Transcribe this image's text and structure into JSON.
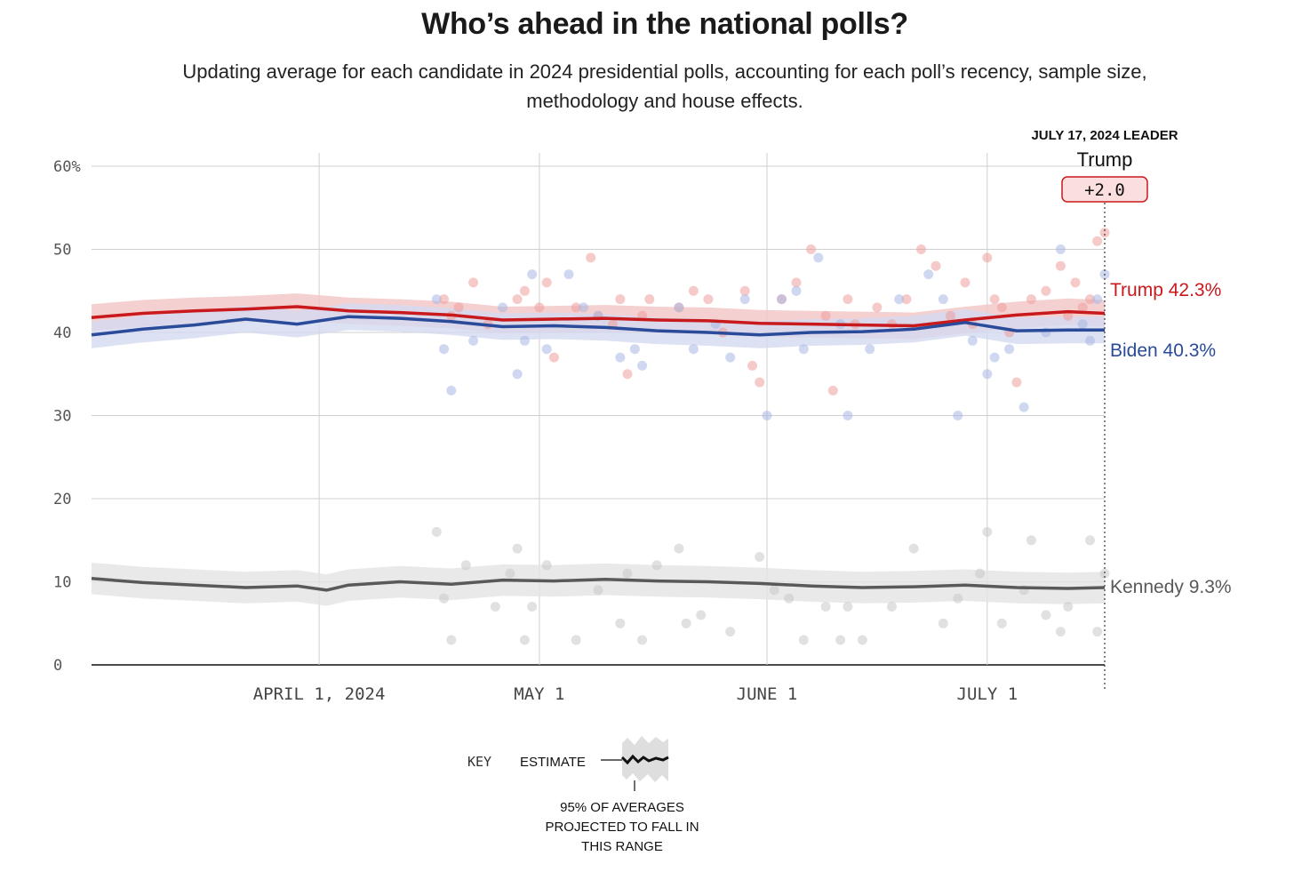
{
  "header": {
    "title": "Who’s ahead in the national polls?",
    "subtitle": "Updating average for each candidate in 2024 presidential polls, accounting for each poll’s recency, sample size, methodology and house effects."
  },
  "leader": {
    "date_label": "JULY 17, 2024 LEADER",
    "name": "Trump",
    "margin": "+2.0"
  },
  "key": {
    "title": "KEY",
    "estimate_label": "ESTIMATE",
    "band_lines": [
      "95% OF AVERAGES",
      "PROJECTED TO FALL IN",
      "THIS RANGE"
    ]
  },
  "chart_data": {
    "type": "line",
    "x_range": [
      "2024-03-01",
      "2024-07-17"
    ],
    "ylim": [
      0,
      60
    ],
    "y_ticks": [
      {
        "value": 60,
        "label": "60%"
      },
      {
        "value": 50,
        "label": "50"
      },
      {
        "value": 40,
        "label": "40"
      },
      {
        "value": 30,
        "label": "30"
      },
      {
        "value": 20,
        "label": "20"
      },
      {
        "value": 10,
        "label": "10"
      },
      {
        "value": 0,
        "label": "0"
      }
    ],
    "x_ticks": [
      {
        "date": "2024-04-01",
        "label": "APRIL 1, 2024"
      },
      {
        "date": "2024-05-01",
        "label": "MAY 1"
      },
      {
        "date": "2024-06-01",
        "label": "JUNE 1"
      },
      {
        "date": "2024-07-01",
        "label": "JULY 1"
      }
    ],
    "grid": true,
    "series": [
      {
        "name": "Trump",
        "end_label": "Trump 42.3%",
        "color": "#c8191d",
        "band_color": "#f2c4c4",
        "dot_color": "#ef9f9c",
        "band_half_width": 1.6,
        "average": [
          [
            "2024-03-01",
            41.8
          ],
          [
            "2024-03-08",
            42.3
          ],
          [
            "2024-03-15",
            42.6
          ],
          [
            "2024-03-22",
            42.8
          ],
          [
            "2024-03-29",
            43.1
          ],
          [
            "2024-04-05",
            42.6
          ],
          [
            "2024-04-12",
            42.4
          ],
          [
            "2024-04-19",
            42.1
          ],
          [
            "2024-04-26",
            41.5
          ],
          [
            "2024-05-03",
            41.6
          ],
          [
            "2024-05-10",
            41.7
          ],
          [
            "2024-05-17",
            41.5
          ],
          [
            "2024-05-24",
            41.4
          ],
          [
            "2024-05-31",
            41.1
          ],
          [
            "2024-06-07",
            41.0
          ],
          [
            "2024-06-14",
            40.9
          ],
          [
            "2024-06-21",
            40.8
          ],
          [
            "2024-06-28",
            41.5
          ],
          [
            "2024-07-05",
            42.1
          ],
          [
            "2024-07-12",
            42.5
          ],
          [
            "2024-07-17",
            42.3
          ]
        ],
        "polls": [
          [
            "2024-04-18",
            44
          ],
          [
            "2024-04-19",
            42
          ],
          [
            "2024-04-20",
            43
          ],
          [
            "2024-04-22",
            46
          ],
          [
            "2024-04-24",
            41
          ],
          [
            "2024-04-28",
            44
          ],
          [
            "2024-04-29",
            45
          ],
          [
            "2024-05-01",
            43
          ],
          [
            "2024-05-02",
            46
          ],
          [
            "2024-05-03",
            37
          ],
          [
            "2024-05-06",
            43
          ],
          [
            "2024-05-08",
            49
          ],
          [
            "2024-05-09",
            42
          ],
          [
            "2024-05-11",
            41
          ],
          [
            "2024-05-12",
            44
          ],
          [
            "2024-05-13",
            35
          ],
          [
            "2024-05-15",
            42
          ],
          [
            "2024-05-16",
            44
          ],
          [
            "2024-05-20",
            43
          ],
          [
            "2024-05-22",
            45
          ],
          [
            "2024-05-24",
            44
          ],
          [
            "2024-05-26",
            40
          ],
          [
            "2024-05-29",
            45
          ],
          [
            "2024-05-30",
            36
          ],
          [
            "2024-05-31",
            34
          ],
          [
            "2024-06-03",
            44
          ],
          [
            "2024-06-05",
            46
          ],
          [
            "2024-06-07",
            50
          ],
          [
            "2024-06-09",
            42
          ],
          [
            "2024-06-10",
            33
          ],
          [
            "2024-06-12",
            44
          ],
          [
            "2024-06-13",
            41
          ],
          [
            "2024-06-16",
            43
          ],
          [
            "2024-06-18",
            41
          ],
          [
            "2024-06-20",
            44
          ],
          [
            "2024-06-22",
            50
          ],
          [
            "2024-06-24",
            48
          ],
          [
            "2024-06-26",
            42
          ],
          [
            "2024-06-28",
            46
          ],
          [
            "2024-06-29",
            41
          ],
          [
            "2024-07-01",
            49
          ],
          [
            "2024-07-02",
            44
          ],
          [
            "2024-07-03",
            43
          ],
          [
            "2024-07-04",
            40
          ],
          [
            "2024-07-05",
            34
          ],
          [
            "2024-07-07",
            44
          ],
          [
            "2024-07-09",
            45
          ],
          [
            "2024-07-11",
            48
          ],
          [
            "2024-07-12",
            42
          ],
          [
            "2024-07-13",
            46
          ],
          [
            "2024-07-14",
            43
          ],
          [
            "2024-07-15",
            44
          ],
          [
            "2024-07-16",
            51
          ],
          [
            "2024-07-17",
            52
          ]
        ]
      },
      {
        "name": "Biden",
        "end_label": "Biden 40.3%",
        "color": "#2a4a9a",
        "band_color": "#d3daf0",
        "dot_color": "#a8b8e4",
        "band_half_width": 1.6,
        "average": [
          [
            "2024-03-01",
            39.7
          ],
          [
            "2024-03-08",
            40.4
          ],
          [
            "2024-03-15",
            40.9
          ],
          [
            "2024-03-22",
            41.6
          ],
          [
            "2024-03-29",
            41.0
          ],
          [
            "2024-04-05",
            41.9
          ],
          [
            "2024-04-12",
            41.7
          ],
          [
            "2024-04-19",
            41.3
          ],
          [
            "2024-04-26",
            40.7
          ],
          [
            "2024-05-03",
            40.8
          ],
          [
            "2024-05-10",
            40.6
          ],
          [
            "2024-05-17",
            40.2
          ],
          [
            "2024-05-24",
            40.0
          ],
          [
            "2024-05-31",
            39.7
          ],
          [
            "2024-06-07",
            40.0
          ],
          [
            "2024-06-14",
            40.1
          ],
          [
            "2024-06-21",
            40.4
          ],
          [
            "2024-06-28",
            41.2
          ],
          [
            "2024-07-05",
            40.2
          ],
          [
            "2024-07-12",
            40.3
          ],
          [
            "2024-07-17",
            40.3
          ]
        ],
        "polls": [
          [
            "2024-04-17",
            44
          ],
          [
            "2024-04-18",
            38
          ],
          [
            "2024-04-19",
            33
          ],
          [
            "2024-04-22",
            39
          ],
          [
            "2024-04-26",
            43
          ],
          [
            "2024-04-28",
            35
          ],
          [
            "2024-04-29",
            39
          ],
          [
            "2024-04-30",
            47
          ],
          [
            "2024-05-02",
            38
          ],
          [
            "2024-05-05",
            47
          ],
          [
            "2024-05-07",
            43
          ],
          [
            "2024-05-09",
            42
          ],
          [
            "2024-05-12",
            37
          ],
          [
            "2024-05-14",
            38
          ],
          [
            "2024-05-15",
            36
          ],
          [
            "2024-05-20",
            43
          ],
          [
            "2024-05-22",
            38
          ],
          [
            "2024-05-25",
            41
          ],
          [
            "2024-05-27",
            37
          ],
          [
            "2024-05-29",
            44
          ],
          [
            "2024-06-01",
            30
          ],
          [
            "2024-06-03",
            44
          ],
          [
            "2024-06-05",
            45
          ],
          [
            "2024-06-06",
            38
          ],
          [
            "2024-06-08",
            49
          ],
          [
            "2024-06-11",
            41
          ],
          [
            "2024-06-12",
            30
          ],
          [
            "2024-06-15",
            38
          ],
          [
            "2024-06-19",
            44
          ],
          [
            "2024-06-23",
            47
          ],
          [
            "2024-06-25",
            44
          ],
          [
            "2024-06-27",
            30
          ],
          [
            "2024-06-29",
            39
          ],
          [
            "2024-07-01",
            35
          ],
          [
            "2024-07-02",
            37
          ],
          [
            "2024-07-04",
            38
          ],
          [
            "2024-07-06",
            31
          ],
          [
            "2024-07-09",
            40
          ],
          [
            "2024-07-11",
            50
          ],
          [
            "2024-07-14",
            41
          ],
          [
            "2024-07-15",
            39
          ],
          [
            "2024-07-16",
            44
          ],
          [
            "2024-07-17",
            47
          ]
        ]
      },
      {
        "name": "Kennedy",
        "end_label": "Kennedy 9.3%",
        "color": "#595959",
        "band_color": "#e3e3e3",
        "dot_color": "#c9c9c9",
        "band_half_width": 1.9,
        "average": [
          [
            "2024-03-01",
            10.4
          ],
          [
            "2024-03-08",
            9.9
          ],
          [
            "2024-03-15",
            9.6
          ],
          [
            "2024-03-22",
            9.3
          ],
          [
            "2024-03-29",
            9.5
          ],
          [
            "2024-04-02",
            9.0
          ],
          [
            "2024-04-05",
            9.6
          ],
          [
            "2024-04-12",
            10.0
          ],
          [
            "2024-04-19",
            9.7
          ],
          [
            "2024-04-26",
            10.2
          ],
          [
            "2024-05-03",
            10.1
          ],
          [
            "2024-05-10",
            10.3
          ],
          [
            "2024-05-17",
            10.1
          ],
          [
            "2024-05-24",
            10.0
          ],
          [
            "2024-05-31",
            9.8
          ],
          [
            "2024-06-07",
            9.5
          ],
          [
            "2024-06-14",
            9.3
          ],
          [
            "2024-06-21",
            9.4
          ],
          [
            "2024-06-28",
            9.6
          ],
          [
            "2024-07-05",
            9.3
          ],
          [
            "2024-07-12",
            9.2
          ],
          [
            "2024-07-17",
            9.3
          ]
        ],
        "polls": [
          [
            "2024-04-17",
            16
          ],
          [
            "2024-04-18",
            8
          ],
          [
            "2024-04-19",
            3
          ],
          [
            "2024-04-21",
            12
          ],
          [
            "2024-04-25",
            7
          ],
          [
            "2024-04-27",
            11
          ],
          [
            "2024-04-28",
            14
          ],
          [
            "2024-04-29",
            3
          ],
          [
            "2024-04-30",
            7
          ],
          [
            "2024-05-02",
            12
          ],
          [
            "2024-05-06",
            3
          ],
          [
            "2024-05-09",
            9
          ],
          [
            "2024-05-12",
            5
          ],
          [
            "2024-05-13",
            11
          ],
          [
            "2024-05-15",
            3
          ],
          [
            "2024-05-17",
            12
          ],
          [
            "2024-05-20",
            14
          ],
          [
            "2024-05-21",
            5
          ],
          [
            "2024-05-23",
            6
          ],
          [
            "2024-05-27",
            4
          ],
          [
            "2024-05-31",
            13
          ],
          [
            "2024-06-02",
            9
          ],
          [
            "2024-06-04",
            8
          ],
          [
            "2024-06-06",
            3
          ],
          [
            "2024-06-09",
            7
          ],
          [
            "2024-06-11",
            3
          ],
          [
            "2024-06-12",
            7
          ],
          [
            "2024-06-14",
            3
          ],
          [
            "2024-06-18",
            7
          ],
          [
            "2024-06-21",
            14
          ],
          [
            "2024-06-25",
            5
          ],
          [
            "2024-06-27",
            8
          ],
          [
            "2024-06-30",
            11
          ],
          [
            "2024-07-01",
            16
          ],
          [
            "2024-07-03",
            5
          ],
          [
            "2024-07-06",
            9
          ],
          [
            "2024-07-07",
            15
          ],
          [
            "2024-07-09",
            6
          ],
          [
            "2024-07-11",
            4
          ],
          [
            "2024-07-12",
            7
          ],
          [
            "2024-07-15",
            15
          ],
          [
            "2024-07-16",
            4
          ],
          [
            "2024-07-17",
            11
          ]
        ]
      }
    ]
  }
}
